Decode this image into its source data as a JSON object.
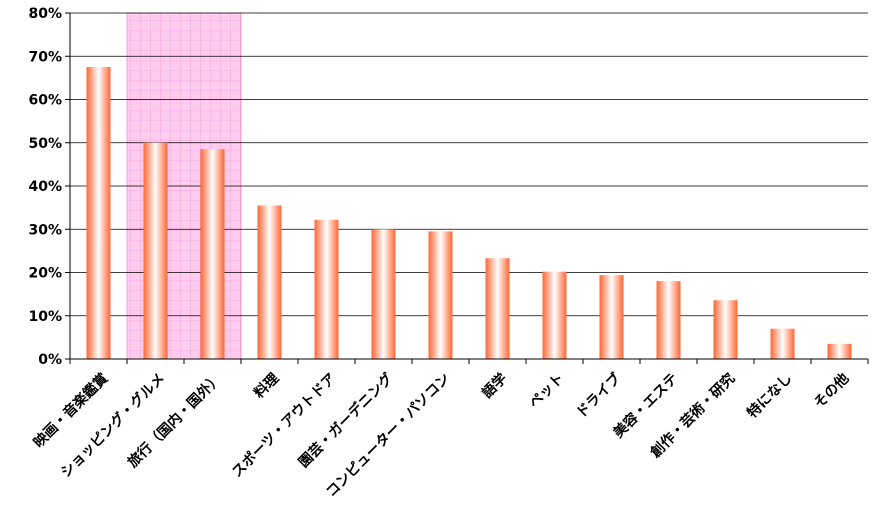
{
  "chart_data": {
    "type": "bar",
    "categories": [
      "映画・音楽鑑賞",
      "ショッピング・グルメ",
      "旅行（国内・国外）",
      "料理",
      "スポーツ・アウトドア",
      "園芸・ガーデニング",
      "コンピューター・パソコン",
      "語学",
      "ペット",
      "ドライブ",
      "美容・エステ",
      "創作・芸術・研究",
      "特になし",
      "その他"
    ],
    "values": [
      67.5,
      50,
      48.5,
      35.5,
      32.2,
      30,
      29.5,
      23.3,
      20.2,
      19.4,
      18,
      13.6,
      7,
      3.5
    ],
    "ylim": [
      0,
      80
    ],
    "yticks": [
      "0%",
      "10%",
      "20%",
      "30%",
      "40%",
      "50%",
      "60%",
      "70%",
      "80%"
    ],
    "grid": true,
    "highlight": {
      "categories": [
        "ショッピング・グルメ",
        "旅行（国内・国外）"
      ],
      "color": "#ffccee"
    },
    "colors": {
      "bar_edge": "#ff6633",
      "bar_center": "#ffffff",
      "grid": "#000000",
      "highlight": "#ffccee"
    },
    "title": "",
    "xlabel": "",
    "ylabel": ""
  }
}
